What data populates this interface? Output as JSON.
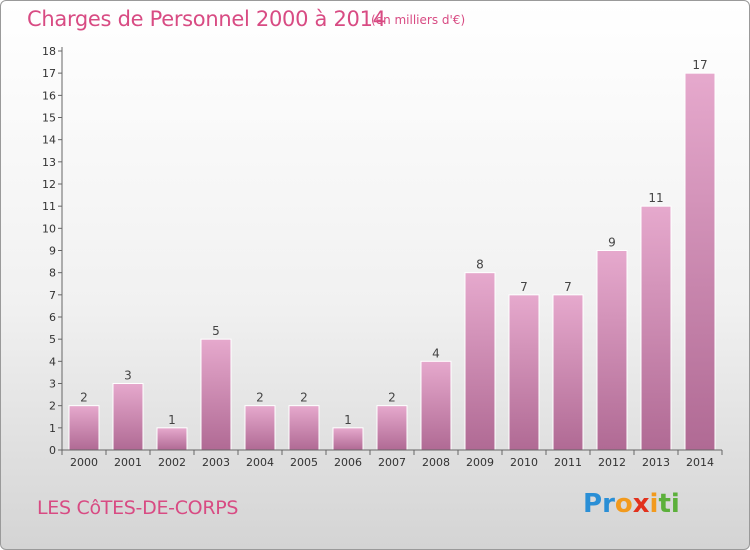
{
  "header": {
    "title": "Charges de Personnel 2000 à 2014",
    "subtitle": "(en milliers d'€)"
  },
  "footer": {
    "commune": "LES CôTES-DE-CORPS",
    "logo": {
      "letters": [
        "P",
        "r",
        "o",
        "x",
        "i",
        "t",
        "i"
      ],
      "colors": [
        "#2a8fd6",
        "#2a8fd6",
        "#f29a1d",
        "#e2311d",
        "#f29a1d",
        "#5cb03b",
        "#5cb03b"
      ]
    }
  },
  "colors": {
    "bar_top": "#e6a9cd",
    "bar_bottom": "#b06a94",
    "axis": "#666666",
    "grid": "#cccccc"
  },
  "chart_data": {
    "type": "bar",
    "title": "Charges de Personnel 2000 à 2014",
    "subtitle": "(en milliers d'€)",
    "xlabel": "",
    "ylabel": "",
    "categories": [
      "2000",
      "2001",
      "2002",
      "2003",
      "2004",
      "2005",
      "2006",
      "2007",
      "2008",
      "2009",
      "2010",
      "2011",
      "2012",
      "2013",
      "2014"
    ],
    "values": [
      2,
      3,
      1,
      5,
      2,
      2,
      1,
      2,
      4,
      8,
      7,
      7,
      9,
      11,
      17
    ],
    "ylim": [
      0,
      18
    ],
    "yticks": [
      0,
      1,
      2,
      3,
      4,
      5,
      6,
      7,
      8,
      9,
      10,
      11,
      12,
      13,
      14,
      15,
      16,
      17,
      18
    ],
    "grid": false,
    "data_labels": true,
    "legend": "none"
  }
}
